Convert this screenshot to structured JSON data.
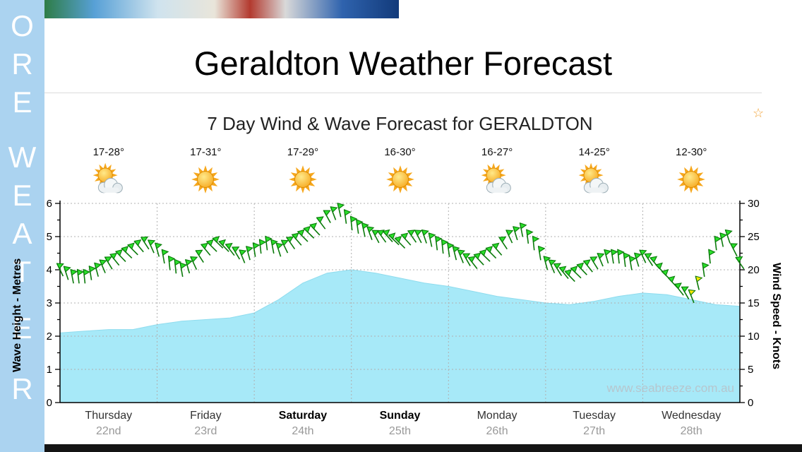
{
  "page": {
    "title": "Geraldton Weather Forecast"
  },
  "icons": {
    "star": "☆"
  },
  "sidebar": {
    "letters": [
      "O",
      "R",
      "E",
      "W",
      "E",
      "A",
      "T",
      "E",
      "R"
    ]
  },
  "chart_data": {
    "type": "combo",
    "title": "7 Day Wind & Wave Forecast for GERALDTON",
    "watermark": "www.seabreeze.com.au",
    "grid": true,
    "left_axis": {
      "label": "Wave Height - Metres",
      "min": 0,
      "max": 6,
      "ticks": [
        0,
        1,
        2,
        3,
        4,
        5,
        6
      ]
    },
    "right_axis": {
      "label": "Wind Speed - Knots",
      "min": 0,
      "max": 30,
      "ticks": [
        0,
        5,
        10,
        15,
        20,
        25,
        30
      ]
    },
    "days": [
      {
        "label": "Thursday",
        "date": "22nd",
        "temp": "17-28°",
        "icon": "sun-cloud",
        "emphasis": false
      },
      {
        "label": "Friday",
        "date": "23rd",
        "temp": "17-31°",
        "icon": "sun",
        "emphasis": false
      },
      {
        "label": "Saturday",
        "date": "24th",
        "temp": "17-29°",
        "icon": "sun",
        "emphasis": true
      },
      {
        "label": "Sunday",
        "date": "25th",
        "temp": "16-30°",
        "icon": "sun",
        "emphasis": true
      },
      {
        "label": "Monday",
        "date": "26th",
        "temp": "16-27°",
        "icon": "sun-cloud",
        "emphasis": false
      },
      {
        "label": "Tuesday",
        "date": "27th",
        "temp": "14-25°",
        "icon": "sun-cloud",
        "emphasis": false
      },
      {
        "label": "Wednesday",
        "date": "28th",
        "temp": "12-30°",
        "icon": "sun",
        "emphasis": false
      }
    ],
    "series": [
      {
        "name": "Wave Height",
        "type": "area",
        "unit": "metres",
        "color": "#a7e9f8",
        "points_per_day": 4,
        "values": [
          2.1,
          2.15,
          2.2,
          2.2,
          2.35,
          2.45,
          2.5,
          2.55,
          2.7,
          3.1,
          3.6,
          3.9,
          4.0,
          3.9,
          3.75,
          3.6,
          3.5,
          3.35,
          3.2,
          3.1,
          3.0,
          2.95,
          3.05,
          3.2,
          3.3,
          3.25,
          3.1,
          2.95,
          2.9
        ]
      },
      {
        "name": "Wind Speed",
        "type": "wind-barbs",
        "unit": "knots",
        "color": "#2be02b",
        "points_per_day": 8,
        "values": [
          20,
          19,
          19,
          20,
          21,
          22,
          23,
          24,
          23,
          21,
          20,
          21,
          23,
          24,
          23,
          22,
          23,
          24,
          23,
          24,
          25,
          26,
          28,
          29,
          27,
          26,
          25,
          25,
          24,
          25,
          25,
          24,
          23,
          22,
          21,
          22,
          23,
          25,
          26,
          24,
          21,
          20,
          19,
          20,
          21,
          22,
          22,
          21,
          22,
          21,
          19,
          17,
          16,
          20,
          24,
          25,
          21
        ],
        "highlight": {
          "index": 52,
          "color": "#ffe800"
        }
      }
    ]
  }
}
